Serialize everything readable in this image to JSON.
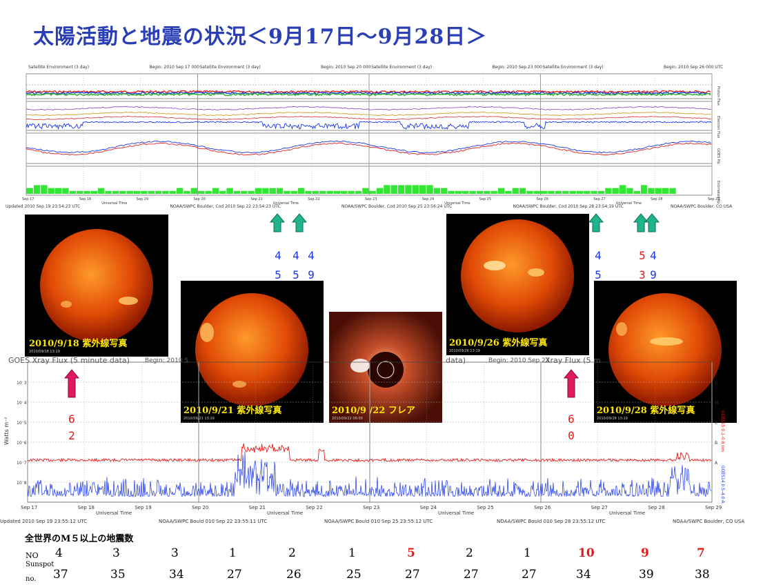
{
  "title": "太陽活動と地震の状況＜9月17日～9月28日＞",
  "top_panels": [
    {
      "header": "Satellite Environment (3 day)",
      "begin": "Begin:  2010 Sep 17 000",
      "updated": "Updated 2010 Sep 19 23:54:23 UTC"
    },
    {
      "header": "Satellite Environment (3 day)",
      "begin": "Begin:  2010 Sep 20 000",
      "updated": "NOAA/SWPC Boulder, Cod 2010 Sep 22 23:54:23 UTC"
    },
    {
      "header": "Satellite Environment (3 day)",
      "begin": "Begin:  2010 Sep 23 000",
      "updated": "NOAA/SWPC Boulder, Cod 2010 Sep 25 23:56:24 UTC"
    },
    {
      "header": "Satellite Environment (3 day)",
      "begin": "Begin:  2010 Sep 26 000 UTC",
      "updated": "NOAA/SWPC Boulder, Cod 2010 Sep 28 23:54:19 UTC"
    }
  ],
  "top_right_footer": "NOAA/SWPC Boulder, CO USA",
  "top_day_ticks": [
    "Sep 17",
    "Sep 18",
    "Sep 19",
    "Sep 20",
    "Sep 21",
    "Sep 22",
    "Sep 23",
    "Sep 24",
    "Sep 25",
    "Sep 26",
    "Sep 27",
    "Sep 28",
    "Sep 29"
  ],
  "top_xlabel": "Universal Time",
  "top_side_labels": [
    "Proton Flux",
    "Electron Flux",
    "GOES Hp",
    "Estimated Kp"
  ],
  "xray": {
    "title": "GOES Xray Flux (5 minute data)",
    "begin": "Begin:  2010 S",
    "title_mid": "data)",
    "begin_mid": "Begin:  2010 Sep 23",
    "title_right": "Xray Flux (5 m",
    "ylabel": "Watts m⁻²",
    "xlabel": "Universal Time",
    "day_ticks": [
      "Sep 17",
      "Sep 18",
      "Sep 19",
      "Sep 20",
      "Sep 21",
      "Sep 22",
      "Sep 23",
      "Sep 24",
      "Sep 25",
      "Sep 26",
      "Sep 27",
      "Sep 28",
      "Sep 29"
    ],
    "right_classes": [
      "X",
      "M",
      "C",
      "B",
      "A"
    ],
    "goes15": "GOES15 0.1–0.8 nm",
    "goes14": "GOES14 0.5–4.0 A",
    "footers": [
      "Updated 2010 Sep 19 23:55:12 UTC",
      "NOAA/SWPC Bould 010 Sep 22 23:55:11 UTC",
      "NOAA/SWPC Bould 010 Sep 25 23:55:12 UTC",
      "NOAA/SWPC Bould 010 Sep 28 23:55:12 UTC",
      "NOAA/SWPC Boulder, CO USA"
    ]
  },
  "sun_images": [
    {
      "label": "2010/9/18 紫外線写真",
      "small": "2010/09/18 13:19"
    },
    {
      "label": "2010/9/21 紫外線写真",
      "small": "2010/09/21 13:19"
    },
    {
      "label": "2010/9 /22 フレア",
      "small": "2010/09/22 06:00"
    },
    {
      "label": "2010/9/26 紫外線写真",
      "small": "2010/09/26 13:19"
    },
    {
      "label": "2010/9/28 紫外線写真",
      "small": "2010/09/28 13:19"
    }
  ],
  "quake_labels_blue": [
    {
      "top": "4",
      "bottom": "5"
    },
    {
      "top": "4",
      "bottom": "5"
    },
    {
      "top": "4",
      "bottom": "9"
    },
    {
      "top": "4",
      "bottom": "5"
    }
  ],
  "quake_labels_red_blue": [
    {
      "top": "5",
      "bottom": "3"
    },
    {
      "top": "4",
      "bottom": "9"
    }
  ],
  "quake_labels_pink": [
    {
      "top": "6",
      "bottom": "2"
    },
    {
      "top": "6",
      "bottom": "0"
    }
  ],
  "table": {
    "heading": "全世界のM５以上の地震数",
    "no_label": "NO",
    "sunspot_label1": "Sunspot",
    "sunspot_label2": "no.",
    "no_values": [
      "4",
      "3",
      "3",
      "1",
      "2",
      "1",
      "5",
      "2",
      "1",
      "10",
      "9",
      "7"
    ],
    "sunspot_values": [
      "37",
      "35",
      "34",
      "27",
      "26",
      "25",
      "27",
      "27",
      "27",
      "34",
      "39",
      "38"
    ]
  },
  "colors": {
    "title": "#2a3fb5",
    "red": "#e21a1a",
    "blue_trace": "#1a35e6",
    "kp_bar": "#33e633",
    "arrow_green": "#1fb48a",
    "arrow_pink": "#e0185f"
  },
  "chart_data": {
    "type": "bar",
    "title": "全世界のM５以上の地震数",
    "categories": [
      "Sep 17",
      "Sep 18",
      "Sep 19",
      "Sep 20",
      "Sep 21",
      "Sep 22",
      "Sep 23",
      "Sep 24",
      "Sep 25",
      "Sep 26",
      "Sep 27",
      "Sep 28"
    ],
    "series": [
      {
        "name": "NO",
        "values": [
          4,
          3,
          3,
          1,
          2,
          1,
          5,
          2,
          1,
          10,
          9,
          7
        ]
      },
      {
        "name": "Sunspot no.",
        "values": [
          37,
          35,
          34,
          27,
          26,
          25,
          27,
          27,
          27,
          34,
          39,
          38
        ]
      }
    ]
  }
}
